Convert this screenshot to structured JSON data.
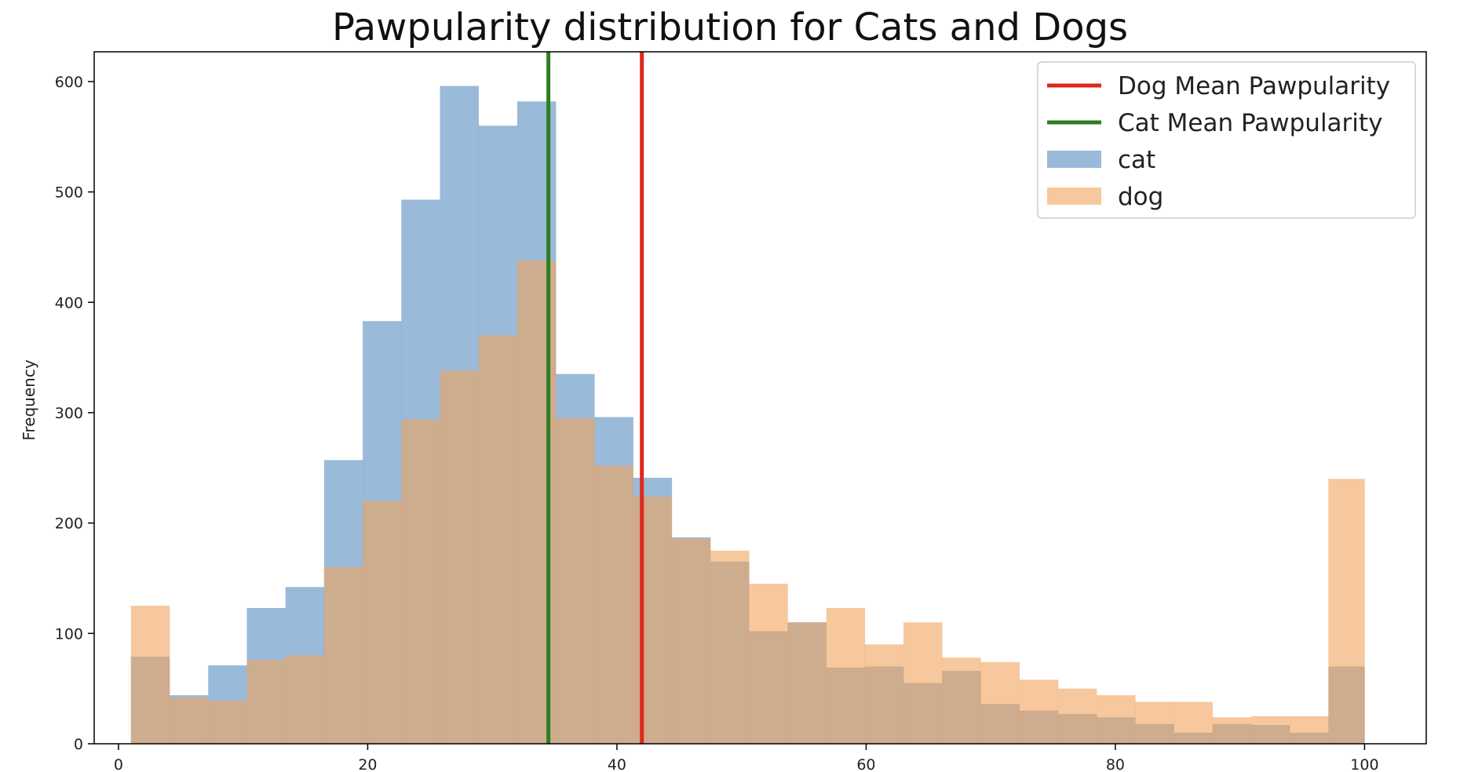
{
  "chart_data": {
    "type": "bar",
    "title": "Pawpularity distribution for Cats and Dogs",
    "xlabel": "",
    "ylabel": "Frequency",
    "xlim": [
      -1.95,
      104.95
    ],
    "ylim": [
      0,
      627
    ],
    "xticks": [
      0,
      20,
      40,
      60,
      80,
      100
    ],
    "yticks": [
      0,
      100,
      200,
      300,
      400,
      500,
      600
    ],
    "grid": false,
    "legend_position": "top-right",
    "bin_edges": [
      1,
      4.1,
      7.2,
      10.3,
      13.4,
      16.5,
      19.6,
      22.7,
      25.8,
      28.9,
      32.0,
      35.1,
      38.2,
      41.3,
      44.4,
      47.5,
      50.6,
      53.7,
      56.8,
      59.9,
      63.0,
      66.1,
      69.2,
      72.3,
      75.4,
      78.5,
      81.6,
      84.7,
      87.8,
      90.9,
      94.0,
      97.1,
      100
    ],
    "series": [
      {
        "name": "cat",
        "color": "#6f9cc9",
        "opacity": 0.7,
        "values": [
          79,
          44,
          71,
          123,
          142,
          257,
          383,
          493,
          596,
          560,
          582,
          335,
          296,
          241,
          187,
          165,
          102,
          110,
          69,
          70,
          55,
          66,
          36,
          30,
          27,
          24,
          18,
          10,
          18,
          17,
          10,
          70
        ]
      },
      {
        "name": "dog",
        "color": "#f1a35b",
        "opacity": 0.6,
        "values": [
          125,
          42,
          39,
          76,
          80,
          160,
          220,
          294,
          338,
          370,
          438,
          295,
          252,
          224,
          186,
          175,
          145,
          110,
          123,
          90,
          110,
          78,
          74,
          58,
          50,
          44,
          38,
          38,
          24,
          25,
          25,
          240
        ]
      }
    ],
    "reference_lines": [
      {
        "name": "Dog Mean Pawpularity",
        "x": 42.0,
        "color": "#e0281b"
      },
      {
        "name": "Cat Mean Pawpularity",
        "x": 34.5,
        "color": "#2e7d1f"
      }
    ],
    "legend": [
      {
        "label": "Dog Mean Pawpularity",
        "kind": "line",
        "color": "#e0281b"
      },
      {
        "label": "Cat Mean Pawpularity",
        "kind": "line",
        "color": "#2e7d1f"
      },
      {
        "label": "cat",
        "kind": "patch",
        "color": "#6f9cc9",
        "opacity": 0.7
      },
      {
        "label": "dog",
        "kind": "patch",
        "color": "#f1a35b",
        "opacity": 0.6
      }
    ]
  }
}
